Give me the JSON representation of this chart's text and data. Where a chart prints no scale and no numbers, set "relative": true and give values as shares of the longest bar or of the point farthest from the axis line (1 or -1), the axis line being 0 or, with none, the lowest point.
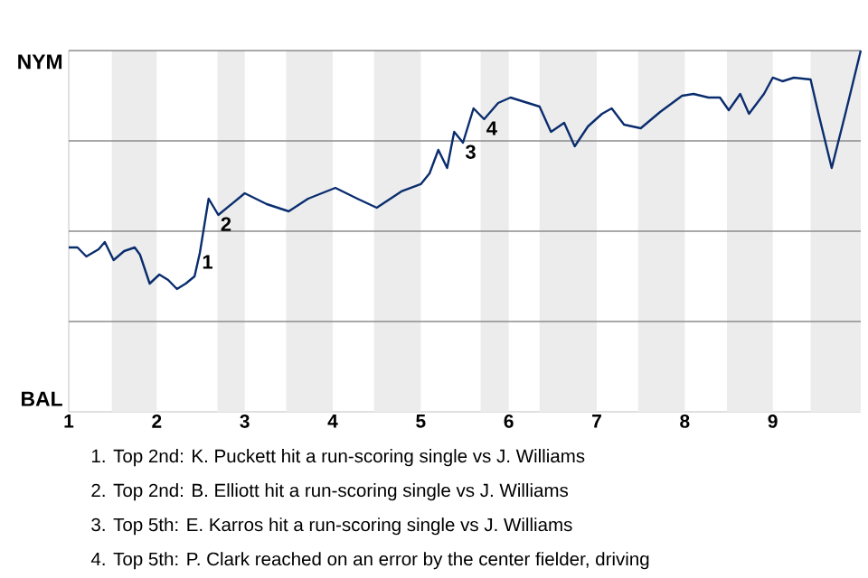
{
  "chart_data": {
    "type": "line",
    "relative": true,
    "x": [
      1.0,
      1.1,
      1.2,
      1.34,
      1.41,
      1.51,
      1.63,
      1.75,
      1.81,
      1.92,
      2.03,
      2.13,
      2.23,
      2.33,
      2.43,
      2.49,
      2.59,
      2.7,
      2.85,
      3.0,
      3.25,
      3.5,
      3.72,
      4.03,
      4.28,
      4.5,
      4.78,
      5.0,
      5.1,
      5.2,
      5.3,
      5.38,
      5.48,
      5.6,
      5.72,
      5.88,
      6.02,
      6.35,
      6.48,
      6.63,
      6.75,
      6.9,
      7.06,
      7.17,
      7.31,
      7.5,
      7.72,
      7.97,
      8.1,
      8.27,
      8.4,
      8.5,
      8.63,
      8.73,
      8.9,
      9.0,
      9.11,
      9.24,
      9.43,
      9.52,
      9.67,
      9.83,
      10.0
    ],
    "series": [
      {
        "color": "#0a2d6e",
        "values": [
          0.455,
          0.455,
          0.43,
          0.45,
          0.47,
          0.42,
          0.445,
          0.455,
          0.435,
          0.355,
          0.38,
          0.365,
          0.34,
          0.355,
          0.375,
          0.44,
          0.59,
          0.545,
          0.575,
          0.605,
          0.575,
          0.555,
          0.59,
          0.62,
          0.59,
          0.565,
          0.61,
          0.63,
          0.66,
          0.725,
          0.675,
          0.775,
          0.745,
          0.84,
          0.81,
          0.855,
          0.87,
          0.845,
          0.775,
          0.8,
          0.735,
          0.79,
          0.825,
          0.84,
          0.795,
          0.785,
          0.83,
          0.875,
          0.88,
          0.87,
          0.87,
          0.835,
          0.88,
          0.825,
          0.88,
          0.925,
          0.915,
          0.925,
          0.92,
          0.825,
          0.675,
          0.83,
          1
        ]
      }
    ],
    "xlim": [
      1,
      10
    ],
    "xticks": [
      1,
      2,
      3,
      4,
      5,
      6,
      7,
      8,
      9
    ],
    "marker": "none",
    "ref_lines": [
      {
        "axis": "y",
        "value": 0.25,
        "color": "#8c8c8c"
      },
      {
        "axis": "y",
        "value": 0.5,
        "color": "#8c8c8c"
      },
      {
        "axis": "y",
        "value": 0.75,
        "color": "#8c8c8c"
      },
      {
        "axis": "y",
        "value": 1,
        "color": "#8c8c8c"
      }
    ],
    "bands": [
      {
        "axis": "x",
        "from": 1.49,
        "to": 2,
        "color": "#ececec"
      },
      {
        "axis": "x",
        "from": 2.69,
        "to": 3,
        "color": "#ececec"
      },
      {
        "axis": "x",
        "from": 3.47,
        "to": 4,
        "color": "#ececec"
      },
      {
        "axis": "x",
        "from": 4.47,
        "to": 5,
        "color": "#ececec"
      },
      {
        "axis": "x",
        "from": 5.68,
        "to": 6,
        "color": "#ececec"
      },
      {
        "axis": "x",
        "from": 6.35,
        "to": 7,
        "color": "#ececec"
      },
      {
        "axis": "x",
        "from": 7.47,
        "to": 8,
        "color": "#ececec"
      },
      {
        "axis": "x",
        "from": 8.48,
        "to": 9,
        "color": "#ececec"
      },
      {
        "axis": "x",
        "from": 9.43,
        "to": 10,
        "color": "#ececec"
      }
    ],
    "annotations": [
      "NYM",
      "BAL",
      {
        "text": "1",
        "x": 2.49,
        "y": 0.44
      },
      {
        "text": "2",
        "x": 2.7,
        "y": 0.545
      },
      {
        "text": "3",
        "x": 5.48,
        "y": 0.745
      },
      {
        "text": "4",
        "x": 5.72,
        "y": 0.81
      },
      "1. Top 2nd: K. Puckett hit a run-scoring single vs J. Williams",
      "2. Top 2nd: B. Elliott hit a run-scoring single vs J. Williams",
      "3. Top 5th: E. Karros hit a run-scoring single vs J. Williams",
      "4. Top 5th: P. Clark reached on an error by the center fielder, driving"
    ]
  }
}
